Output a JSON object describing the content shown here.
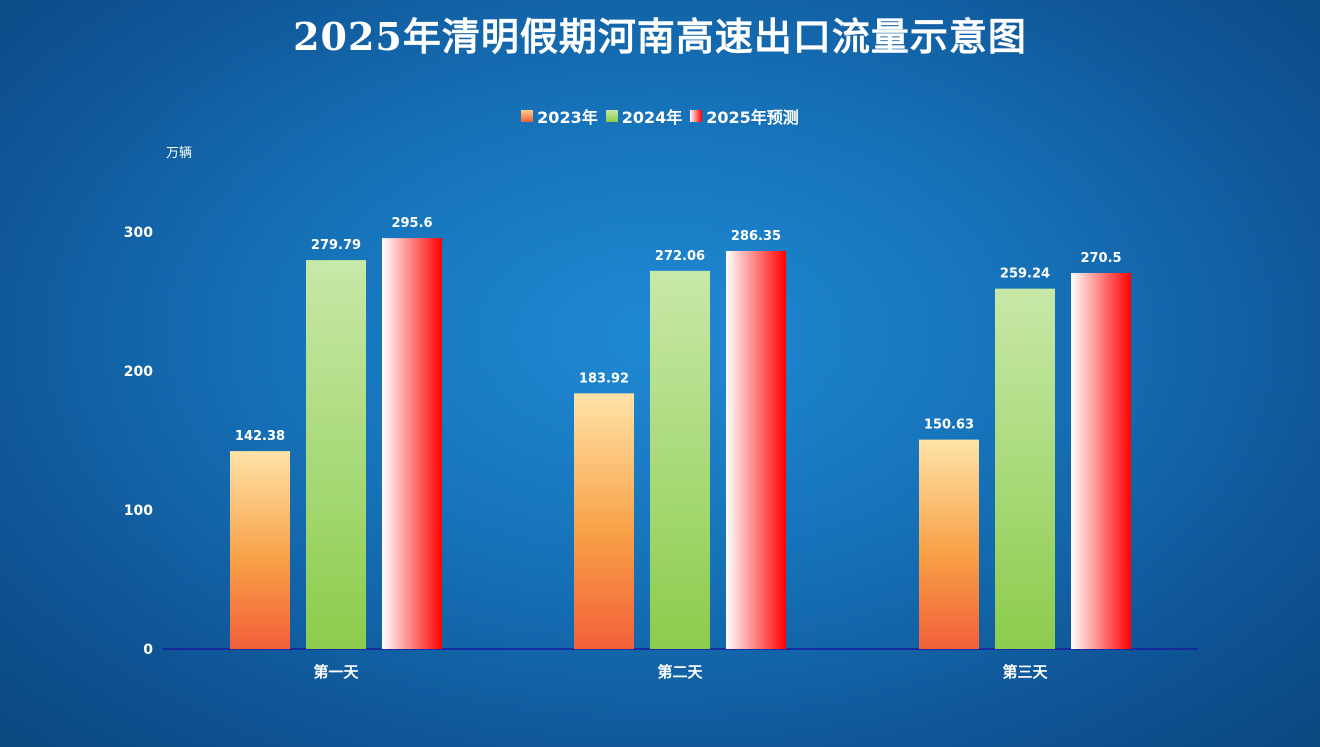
{
  "chart_data": {
    "type": "bar",
    "title": "2025年清明假期河南高速出口流量示意图",
    "ylabel": "万辆",
    "xlabel": "",
    "categories": [
      "第一天",
      "第二天",
      "第三天"
    ],
    "series": [
      {
        "name": "2023年",
        "values": [
          142.38,
          183.92,
          150.63
        ],
        "color_top": "#ffe3a8",
        "color_bottom": "#f2603a"
      },
      {
        "name": "2024年",
        "values": [
          279.79,
          272.06,
          259.24
        ],
        "color_top": "#c8e8a8",
        "color_bottom": "#8ccc4c"
      },
      {
        "name": "2025年预测",
        "values": [
          295.6,
          286.35,
          270.5
        ],
        "color_top": "#ff0000",
        "color_bottom": "#ffffff"
      }
    ],
    "value_labels": [
      [
        "142.38",
        "183.92",
        "150.63"
      ],
      [
        "279.79",
        "272.06",
        "259.24"
      ],
      [
        "295.6",
        "286.35",
        "270.5"
      ]
    ],
    "yticks": [
      "0",
      "100",
      "200",
      "300"
    ],
    "ylim": [
      0,
      300
    ],
    "grid": false,
    "legend_position": "top-center",
    "axis_color": "#1a1aa0"
  }
}
